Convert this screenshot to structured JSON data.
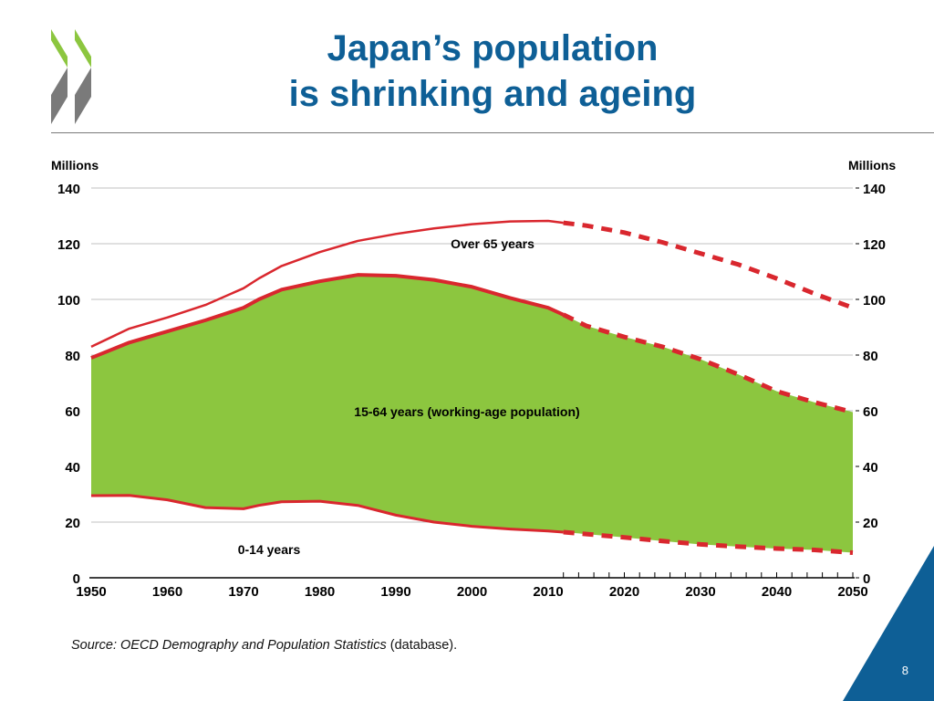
{
  "slide": {
    "title_line1": "Japan’s population",
    "title_line2": "is shrinking and ageing",
    "source_italic": "Source: OECD Demography and Population Statistics",
    "source_plain": " (database).",
    "page_number": "8",
    "logo_icon": "oecd-chevron-logo-icon",
    "colors": {
      "title": "#0e5f96",
      "area": "#8cc63f",
      "line": "#d9272e",
      "corner": "#0e5f96",
      "logo_green": "#8cc63f",
      "logo_grey": "#7a7a7a"
    }
  },
  "chart_data": {
    "type": "area",
    "title": "",
    "ylabel_left": "Millions",
    "ylabel_right": "Millions",
    "xlabel": "",
    "ylim": [
      0,
      140
    ],
    "xlim": [
      1950,
      2050
    ],
    "yticks": [
      0,
      20,
      40,
      60,
      80,
      100,
      120,
      140
    ],
    "xticks": [
      1950,
      1960,
      1970,
      1980,
      1990,
      2000,
      2010,
      2020,
      2030,
      2040,
      2050
    ],
    "grid": true,
    "projection_start": 2012,
    "annotations": {
      "over65": "Over 65 years",
      "working": "15-64 years (working-age population)",
      "children": "0-14 years"
    },
    "x": [
      1950,
      1955,
      1960,
      1965,
      1970,
      1972,
      1975,
      1980,
      1985,
      1990,
      1995,
      2000,
      2005,
      2010,
      2012,
      2015,
      2020,
      2025,
      2030,
      2035,
      2040,
      2045,
      2050
    ],
    "series": [
      {
        "name": "0-14 years (cumulative top)",
        "values": [
          29.5,
          29.6,
          28.0,
          25.2,
          24.8,
          26.0,
          27.3,
          27.5,
          26.0,
          22.5,
          20.0,
          18.5,
          17.5,
          16.8,
          16.4,
          15.7,
          14.5,
          13.2,
          12.0,
          11.2,
          10.5,
          10.0,
          9.0
        ]
      },
      {
        "name": "15-64 years (cumulative top)",
        "values": [
          79.0,
          84.5,
          88.5,
          92.5,
          97.0,
          100.0,
          103.5,
          106.5,
          108.8,
          108.5,
          107.0,
          104.5,
          100.5,
          97.0,
          94.5,
          90.5,
          86.5,
          83.0,
          78.5,
          73.0,
          67.0,
          63.0,
          59.5
        ]
      },
      {
        "name": "Over 65 years (total population)",
        "values": [
          83.0,
          89.5,
          93.5,
          98.0,
          104.0,
          107.5,
          112.0,
          117.0,
          121.0,
          123.5,
          125.5,
          127.0,
          128.0,
          128.2,
          127.5,
          126.5,
          124.0,
          120.5,
          116.5,
          112.5,
          107.5,
          102.0,
          97.0
        ]
      }
    ]
  }
}
